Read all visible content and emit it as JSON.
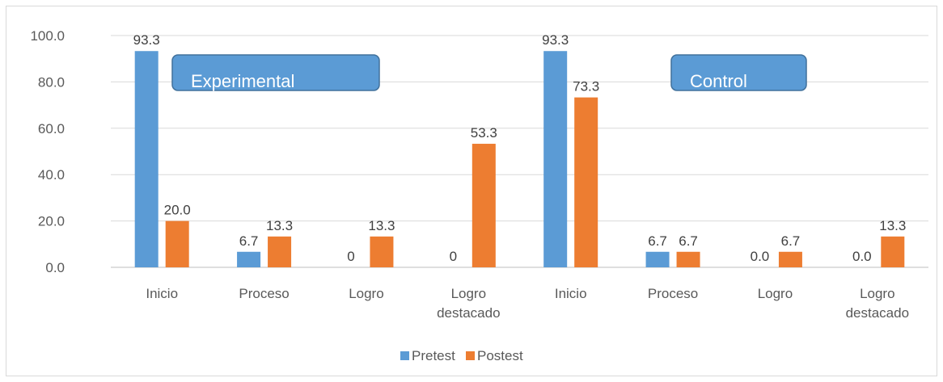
{
  "chart_data": {
    "type": "bar",
    "categories": [
      "Inicio",
      "Proceso",
      "Logro",
      "Logro destacado",
      "Inicio",
      "Proceso",
      "Logro",
      "Logro destacado"
    ],
    "groups": [
      "Experimental",
      "Control"
    ],
    "ylim": [
      0,
      100
    ],
    "yticks": [
      "0.0",
      "20.0",
      "40.0",
      "60.0",
      "80.0",
      "100.0"
    ],
    "grid": true,
    "legend_position": "bottom",
    "series": [
      {
        "name": "Pretest",
        "color": "#5B9BD5",
        "values": [
          93.3,
          6.7,
          0,
          0,
          93.3,
          6.7,
          0,
          0
        ],
        "labels": [
          "93.3",
          "6.7",
          "0",
          "0",
          "93.3",
          "6.7",
          "0.0",
          "0.0"
        ]
      },
      {
        "name": "Postest",
        "color": "#ED7D31",
        "values": [
          20.0,
          13.3,
          13.3,
          53.3,
          73.3,
          6.7,
          6.7,
          13.3
        ],
        "labels": [
          "20.0",
          "13.3",
          "13.3",
          "53.3",
          "73.3",
          "6.7",
          "6.7",
          "13.3"
        ]
      }
    ]
  }
}
